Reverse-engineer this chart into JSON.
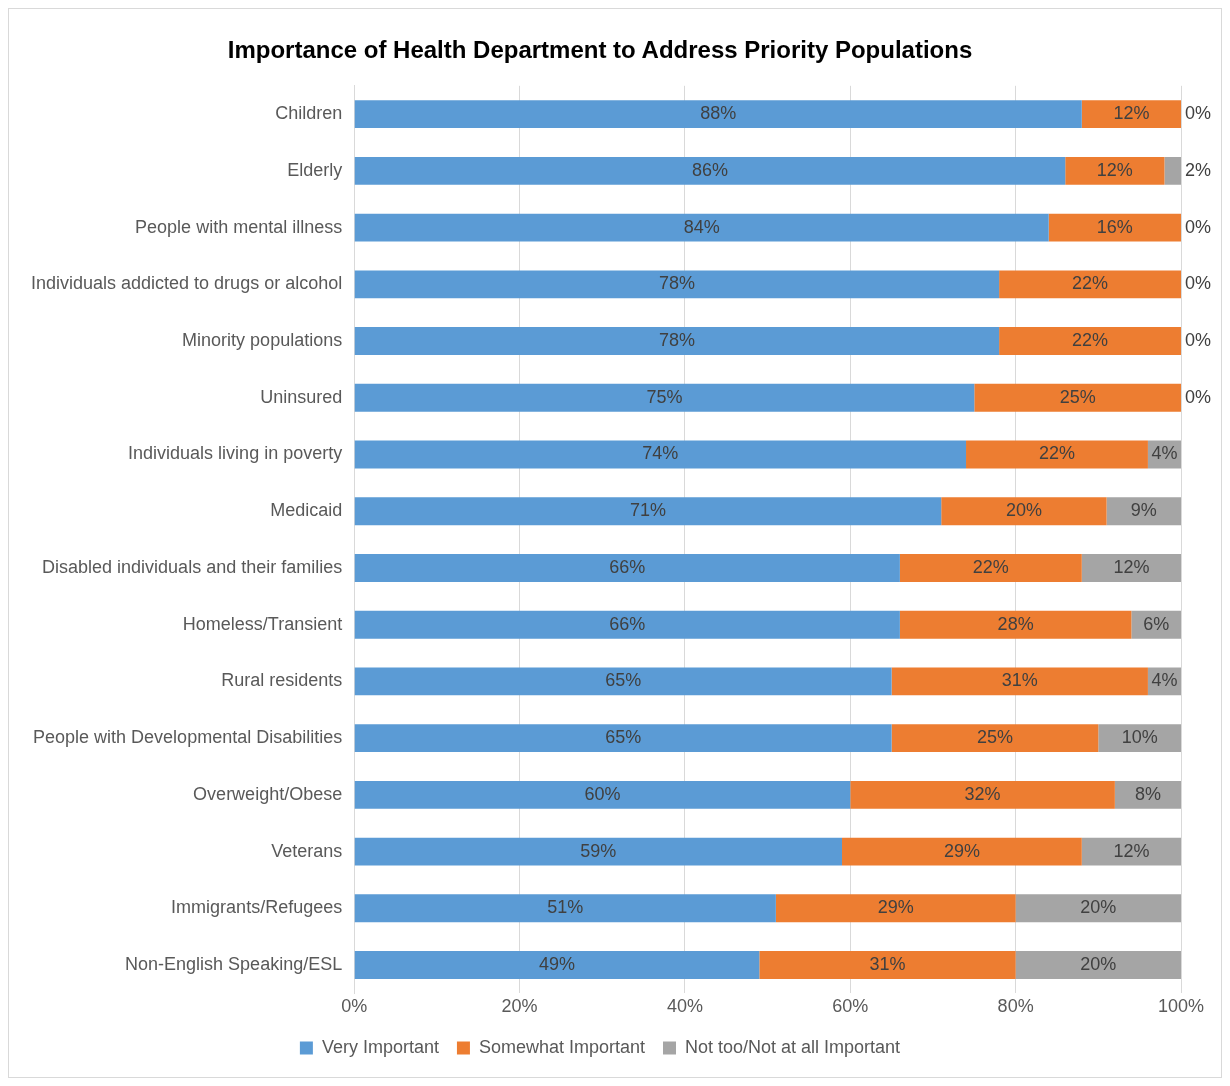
{
  "chart_data": {
    "type": "bar",
    "orientation": "horizontal",
    "stacked": true,
    "title": "Importance of Health Department to Address Priority Populations",
    "categories": [
      "Children",
      "Elderly",
      "People with mental illness",
      "Individuals addicted to drugs or alcohol",
      "Minority populations",
      "Uninsured",
      "Individuals living in poverty",
      "Medicaid",
      "Disabled individuals and their families",
      "Homeless/Transient",
      "Rural residents",
      "People with Developmental Disabilities",
      "Overweight/Obese",
      "Veterans",
      "Immigrants/Refugees",
      "Non-English Speaking/ESL"
    ],
    "series": [
      {
        "name": "Very Important",
        "color": "#5b9bd5",
        "values": [
          88,
          86,
          84,
          78,
          78,
          75,
          74,
          71,
          66,
          66,
          65,
          65,
          60,
          59,
          51,
          49
        ],
        "value_labels": [
          "88%",
          "86%",
          "84%",
          "78%",
          "78%",
          "75%",
          "74%",
          "71%",
          "66%",
          "66%",
          "65%",
          "65%",
          "60%",
          "59%",
          "51%",
          "49%"
        ]
      },
      {
        "name": "Somewhat Important",
        "color": "#ed7d31",
        "values": [
          12,
          12,
          16,
          22,
          22,
          25,
          22,
          20,
          22,
          28,
          31,
          25,
          32,
          29,
          29,
          31
        ],
        "value_labels": [
          "12%",
          "12%",
          "16%",
          "22%",
          "22%",
          "25%",
          "22%",
          "20%",
          "22%",
          "28%",
          "31%",
          "25%",
          "32%",
          "29%",
          "29%",
          "31%"
        ]
      },
      {
        "name": "Not too/Not at all Important",
        "color": "#a5a5a5",
        "values": [
          0,
          2,
          0,
          0,
          0,
          0,
          4,
          9,
          12,
          6,
          4,
          10,
          8,
          12,
          20,
          20
        ],
        "value_labels": [
          "0%",
          "2%",
          "0%",
          "0%",
          "0%",
          "0%",
          "4%",
          "9%",
          "12%",
          "6%",
          "4%",
          "10%",
          "8%",
          "12%",
          "20%",
          "20%"
        ]
      }
    ],
    "xlim": [
      0,
      100
    ],
    "xticks": [
      {
        "value": 0,
        "label": "0%"
      },
      {
        "value": 20,
        "label": "20%"
      },
      {
        "value": 40,
        "label": "40%"
      },
      {
        "value": 60,
        "label": "60%"
      },
      {
        "value": 80,
        "label": "80%"
      },
      {
        "value": 100,
        "label": "100%"
      }
    ],
    "grid": "x",
    "legend": "bottom"
  }
}
